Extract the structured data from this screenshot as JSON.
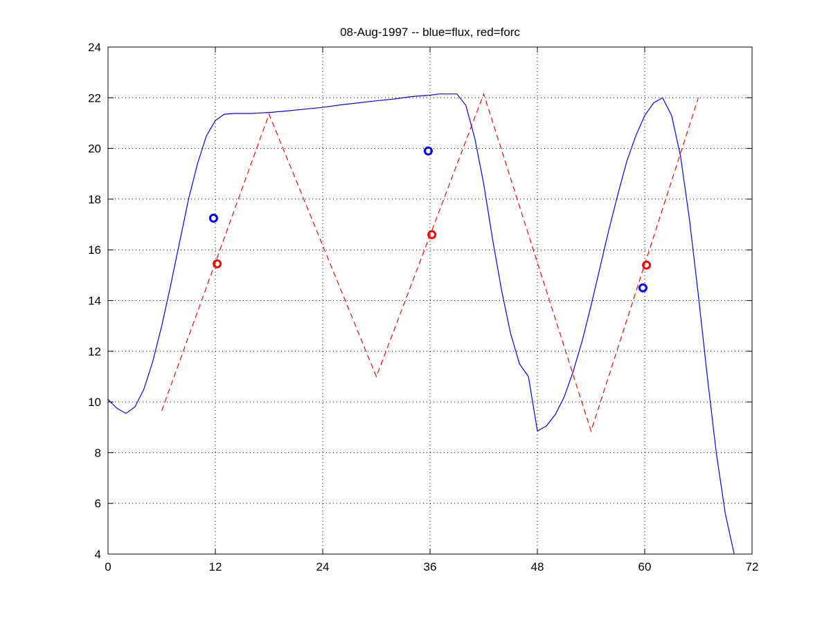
{
  "chart_data": {
    "type": "line",
    "title": "08-Aug-1997 -- blue=flux, red=forc",
    "xlabel": "",
    "ylabel": "",
    "xlim": [
      0,
      72
    ],
    "ylim": [
      4,
      24
    ],
    "xticks": [
      0,
      12,
      24,
      36,
      48,
      60,
      72
    ],
    "yticks": [
      4,
      6,
      8,
      10,
      12,
      14,
      16,
      18,
      20,
      22,
      24
    ],
    "grid": true,
    "grid_style": "dotted",
    "series": [
      {
        "color": "#0000ff",
        "style": "solid",
        "points": [
          [
            0,
            10.1
          ],
          [
            1,
            9.75
          ],
          [
            2,
            9.55
          ],
          [
            3,
            9.8
          ],
          [
            4,
            10.5
          ],
          [
            5,
            11.6
          ],
          [
            6,
            13.0
          ],
          [
            7,
            14.6
          ],
          [
            8,
            16.3
          ],
          [
            9,
            18.0
          ],
          [
            10,
            19.4
          ],
          [
            11,
            20.5
          ],
          [
            12,
            21.1
          ],
          [
            13,
            21.35
          ],
          [
            14,
            21.38
          ],
          [
            16,
            21.38
          ],
          [
            18,
            21.42
          ],
          [
            20,
            21.48
          ],
          [
            22,
            21.55
          ],
          [
            24,
            21.62
          ],
          [
            26,
            21.72
          ],
          [
            28,
            21.8
          ],
          [
            30,
            21.88
          ],
          [
            32,
            21.95
          ],
          [
            34,
            22.05
          ],
          [
            36,
            22.1
          ],
          [
            37,
            22.15
          ],
          [
            38,
            22.15
          ],
          [
            39,
            22.15
          ],
          [
            40,
            21.7
          ],
          [
            41,
            20.4
          ],
          [
            42,
            18.6
          ],
          [
            43,
            16.4
          ],
          [
            44,
            14.4
          ],
          [
            45,
            12.7
          ],
          [
            46,
            11.5
          ],
          [
            47,
            11.0
          ],
          [
            48,
            8.85
          ],
          [
            49,
            9.05
          ],
          [
            50,
            9.5
          ],
          [
            51,
            10.2
          ],
          [
            52,
            11.2
          ],
          [
            53,
            12.4
          ],
          [
            54,
            13.8
          ],
          [
            55,
            15.3
          ],
          [
            56,
            16.8
          ],
          [
            57,
            18.2
          ],
          [
            58,
            19.5
          ],
          [
            59,
            20.5
          ],
          [
            60,
            21.3
          ],
          [
            61,
            21.8
          ],
          [
            62,
            22.0
          ],
          [
            63,
            21.3
          ],
          [
            64,
            19.7
          ],
          [
            65,
            17.2
          ],
          [
            66,
            14.2
          ],
          [
            67,
            11.0
          ],
          [
            68,
            8.0
          ],
          [
            69,
            5.6
          ],
          [
            70,
            4.0
          ]
        ]
      },
      {
        "color": "#ff0000",
        "style": "dashed",
        "points": [
          [
            6,
            9.65
          ],
          [
            18,
            21.35
          ],
          [
            30,
            11.0
          ],
          [
            42,
            22.15
          ],
          [
            54,
            8.85
          ],
          [
            66,
            22.0
          ]
        ]
      }
    ],
    "markers": [
      {
        "color": "#0000ff",
        "x": 11.8,
        "y": 17.25
      },
      {
        "color": "#ff0000",
        "x": 12.2,
        "y": 15.45
      },
      {
        "color": "#0000ff",
        "x": 35.8,
        "y": 19.9
      },
      {
        "color": "#ff0000",
        "x": 36.2,
        "y": 16.6
      },
      {
        "color": "#0000ff",
        "x": 59.8,
        "y": 14.5
      },
      {
        "color": "#ff0000",
        "x": 60.2,
        "y": 15.4
      }
    ]
  }
}
